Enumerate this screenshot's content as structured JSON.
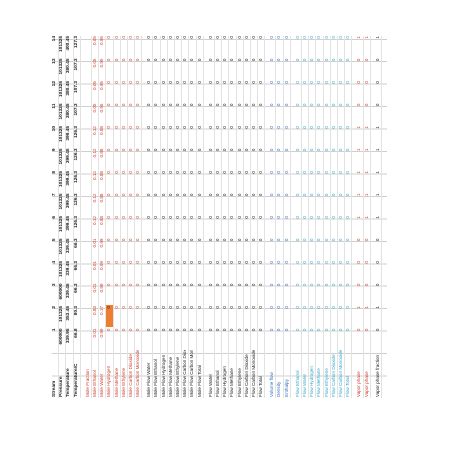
{
  "sheet": {
    "header_rows": [
      {
        "label": "Stream",
        "values": [
          "1",
          "2",
          "3",
          "4",
          "5",
          "6",
          "7",
          "8",
          "9",
          "10",
          "11",
          "12",
          "13",
          "14"
        ],
        "bold": true
      },
      {
        "label": "Pressure",
        "values": [
          "600000",
          "101325",
          "600000",
          "101325",
          "101325",
          "101325",
          "101325",
          "101325",
          "101325",
          "101325",
          "101325",
          "101325",
          "101325",
          "101325"
        ],
        "bold": true
      },
      {
        "label": "Temperature",
        "values": [
          "339.95",
          "353.45",
          "339.45",
          "339.45",
          "339.45",
          "399.45",
          "399.45",
          "399.45",
          "399.45",
          "399.45",
          "380.45",
          "380.45",
          "380.45",
          "400.45"
        ],
        "bold": true
      },
      {
        "label": "Temperature/C",
        "values": [
          "66.8",
          "80.3",
          "66.3",
          "66.3",
          "66.3",
          "126.3",
          "126.3",
          "126.3",
          "126.3",
          "126.3",
          "107.3",
          "107.3",
          "107.3",
          "127.3"
        ],
        "bold": true
      }
    ],
    "groups": [
      {
        "color": "red",
        "rows": [
          {
            "label": "Mole Fraction",
            "values": [
              "",
              "",
              "",
              "",
              "",
              "",
              "",
              "",
              "",
              "",
              "",
              "",
              "",
              ""
            ]
          },
          {
            "label": "Mole Ethanol",
            "values": [
              "0.01",
              "0.83",
              "0.01",
              "0.01",
              "0.01",
              "0.12",
              "0.12",
              "0.12",
              "0.12",
              "0.12",
              "0.05",
              "0.05",
              "0.05",
              "0.05"
            ]
          },
          {
            "label": "Mole Water",
            "values": [
              "0.99",
              "0.17",
              "0.99",
              "0.99",
              "0.99",
              "0.88",
              "0.88",
              "0.88",
              "0.88",
              "0.88",
              "0.95",
              "0.95",
              "0.95",
              "0.95"
            ]
          },
          {
            "label": "Mole Hydrogen",
            "values": [
              "0",
              "0",
              "0",
              "0",
              "0",
              "0",
              "0",
              "0",
              "0",
              "0",
              "0",
              "0",
              "0",
              "0"
            ],
            "highlight": [
              false,
              true,
              false,
              false,
              false,
              false,
              false,
              false,
              false,
              false,
              false,
              false,
              false,
              false
            ]
          },
          {
            "label": "Mole Methane",
            "values": [
              "0",
              "0",
              "0",
              "0",
              "0",
              "0",
              "0",
              "0",
              "0",
              "0",
              "0",
              "0",
              "0",
              "0"
            ]
          },
          {
            "label": "Mole Ethylene",
            "values": [
              "0",
              "0",
              "0",
              "0",
              "0",
              "0",
              "0",
              "0",
              "0",
              "0",
              "0",
              "0",
              "0",
              "0"
            ]
          },
          {
            "label": "Mole Carbon Dioxide",
            "values": [
              "0",
              "0",
              "0",
              "0",
              "0",
              "0",
              "0",
              "0",
              "0",
              "0",
              "0",
              "0",
              "0",
              "0"
            ]
          },
          {
            "label": "Mole Carbon Monoxide",
            "values": [
              "0",
              "0",
              "0",
              "0",
              "0",
              "0",
              "0",
              "0",
              "0",
              "0",
              "0",
              "0",
              "0",
              "0"
            ]
          }
        ]
      },
      {
        "color": "black",
        "rows": [
          {
            "label": "Mole Flow Water",
            "values": [
              "0",
              "0",
              "0",
              "0",
              "0",
              "0",
              "0",
              "0",
              "0",
              "0",
              "0",
              "0",
              "0",
              "0"
            ]
          },
          {
            "label": "Mole Flow Ethanol",
            "values": [
              "0",
              "0",
              "0",
              "0",
              "0",
              "0",
              "0",
              "0",
              "0",
              "0",
              "0",
              "0",
              "0",
              "0"
            ]
          },
          {
            "label": "Mole Flow Hydrogen",
            "values": [
              "0",
              "0",
              "0",
              "0",
              "0",
              "0",
              "0",
              "0",
              "0",
              "0",
              "0",
              "0",
              "0",
              "0"
            ]
          },
          {
            "label": "Mole Flow Methane",
            "values": [
              "0",
              "0",
              "0",
              "0",
              "0",
              "0",
              "0",
              "0",
              "0",
              "0",
              "0",
              "0",
              "0",
              "0"
            ]
          },
          {
            "label": "Mole Flow Ethylene",
            "values": [
              "0",
              "0",
              "0",
              "0",
              "0",
              "0",
              "0",
              "0",
              "0",
              "0",
              "0",
              "0",
              "0",
              "0"
            ]
          },
          {
            "label": "Mole Flow Carbon Dioxide",
            "values": [
              "0",
              "0",
              "0",
              "0",
              "0",
              "0",
              "0",
              "0",
              "0",
              "0",
              "0",
              "0",
              "0",
              "0"
            ]
          },
          {
            "label": "Mole Flow Carbon Monoxide",
            "values": [
              "0",
              "0",
              "0",
              "0",
              "0",
              "0",
              "0",
              "0",
              "0",
              "0",
              "0",
              "0",
              "0",
              "0"
            ]
          },
          {
            "label": "Mole Flow Total",
            "values": [
              "0",
              "0",
              "0",
              "0",
              "0",
              "0",
              "0",
              "0",
              "0",
              "0",
              "0",
              "0",
              "0",
              "0"
            ]
          }
        ]
      },
      {
        "color": "black",
        "rows": [
          {
            "label": "Flow Water",
            "values": [
              "0",
              "0",
              "0",
              "0",
              "0",
              "0",
              "0",
              "0",
              "0",
              "0",
              "0",
              "0",
              "0",
              "0"
            ]
          },
          {
            "label": "Flow Ethanol",
            "values": [
              "0",
              "0",
              "0",
              "0",
              "0",
              "0",
              "0",
              "0",
              "0",
              "0",
              "0",
              "0",
              "0",
              "0"
            ]
          },
          {
            "label": "Flow Hydrogen",
            "values": [
              "0",
              "0",
              "0",
              "0",
              "0",
              "0",
              "0",
              "0",
              "0",
              "0",
              "0",
              "0",
              "0",
              "0"
            ]
          },
          {
            "label": "Flow Methane",
            "values": [
              "0",
              "0",
              "0",
              "0",
              "0",
              "0",
              "0",
              "0",
              "0",
              "0",
              "0",
              "0",
              "0",
              "0"
            ]
          },
          {
            "label": "Flow Ethylene",
            "values": [
              "0",
              "0",
              "0",
              "0",
              "0",
              "0",
              "0",
              "0",
              "0",
              "0",
              "0",
              "0",
              "0",
              "0"
            ]
          },
          {
            "label": "Flow Carbon Dioxide",
            "values": [
              "0",
              "0",
              "0",
              "0",
              "0",
              "0",
              "0",
              "0",
              "0",
              "0",
              "0",
              "0",
              "0",
              "0"
            ]
          },
          {
            "label": "Flow Carbon Monoxide",
            "values": [
              "0",
              "0",
              "0",
              "0",
              "0",
              "0",
              "0",
              "0",
              "0",
              "0",
              "0",
              "0",
              "0",
              "0"
            ]
          },
          {
            "label": "Flow Total",
            "values": [
              "0",
              "0",
              "0",
              "0",
              "0",
              "0",
              "0",
              "0",
              "0",
              "0",
              "0",
              "0",
              "0",
              "0"
            ]
          }
        ]
      },
      {
        "color": "blue",
        "rows": [
          {
            "label": "Volume flow",
            "values": [
              "0",
              "0",
              "0",
              "0",
              "0",
              "0",
              "0",
              "0",
              "0",
              "0",
              "0",
              "0",
              "0",
              "0"
            ]
          },
          {
            "label": "Density",
            "values": [
              "0",
              "0",
              "0",
              "0",
              "0",
              "0",
              "0",
              "0",
              "0",
              "0",
              "0",
              "0",
              "0",
              "0"
            ]
          },
          {
            "label": "Enthalpy",
            "values": [
              "0",
              "0",
              "0",
              "0",
              "0",
              "0",
              "0",
              "0",
              "0",
              "0",
              "0",
              "0",
              "0",
              "0"
            ]
          }
        ]
      },
      {
        "color": "cyan",
        "rows": [
          {
            "label": "Flow Ethanol",
            "values": [
              "0",
              "0",
              "0",
              "0",
              "0",
              "0",
              "0",
              "0",
              "0",
              "0",
              "0",
              "0",
              "0",
              "0"
            ]
          },
          {
            "label": "Flow Water",
            "values": [
              "0",
              "0",
              "0",
              "0",
              "0",
              "0",
              "0",
              "0",
              "0",
              "0",
              "0",
              "0",
              "0",
              "0"
            ]
          },
          {
            "label": "Flow Hydrogen",
            "values": [
              "0",
              "0",
              "0",
              "0",
              "0",
              "0",
              "0",
              "0",
              "0",
              "0",
              "0",
              "0",
              "0",
              "0"
            ]
          },
          {
            "label": "Flow Methane",
            "values": [
              "0",
              "0",
              "0",
              "0",
              "0",
              "0",
              "0",
              "0",
              "0",
              "0",
              "0",
              "0",
              "0",
              "0"
            ]
          },
          {
            "label": "Flow Ethylene",
            "values": [
              "0",
              "0",
              "0",
              "0",
              "0",
              "0",
              "0",
              "0",
              "0",
              "0",
              "0",
              "0",
              "0",
              "0"
            ]
          },
          {
            "label": "Flow Carbon Dioxide",
            "values": [
              "0",
              "0",
              "0",
              "0",
              "0",
              "0",
              "0",
              "0",
              "0",
              "0",
              "0",
              "0",
              "0",
              "0"
            ]
          },
          {
            "label": "Flow Carbon Monoxide",
            "values": [
              "0",
              "0",
              "0",
              "0",
              "0",
              "0",
              "0",
              "0",
              "0",
              "0",
              "0",
              "0",
              "0",
              "0"
            ]
          },
          {
            "label": "Flow Total",
            "values": [
              "0",
              "0",
              "0",
              "0",
              "0",
              "0",
              "0",
              "0",
              "0",
              "0",
              "0",
              "0",
              "0",
              "0"
            ]
          }
        ]
      },
      {
        "color": "red",
        "rows": [
          {
            "label": "Vapor phase",
            "values": [
              "0",
              "1",
              "0",
              "0",
              "0",
              "1",
              "1",
              "1",
              "1",
              "1",
              "0",
              "0",
              "0",
              "1"
            ]
          },
          {
            "label": "Vapor phase",
            "values": [
              "0",
              "1",
              "0",
              "0",
              "0",
              "1",
              "1",
              "1",
              "1",
              "1",
              "0",
              "0",
              "0",
              "1"
            ]
          }
        ]
      },
      {
        "color": "black",
        "rows": [
          {
            "label": "Vapor phase fraction",
            "values": [
              "0",
              "1",
              "0",
              "0",
              "0",
              "1",
              "1",
              "1",
              "1",
              "1",
              "0",
              "0",
              "0",
              "1"
            ]
          }
        ]
      }
    ]
  }
}
